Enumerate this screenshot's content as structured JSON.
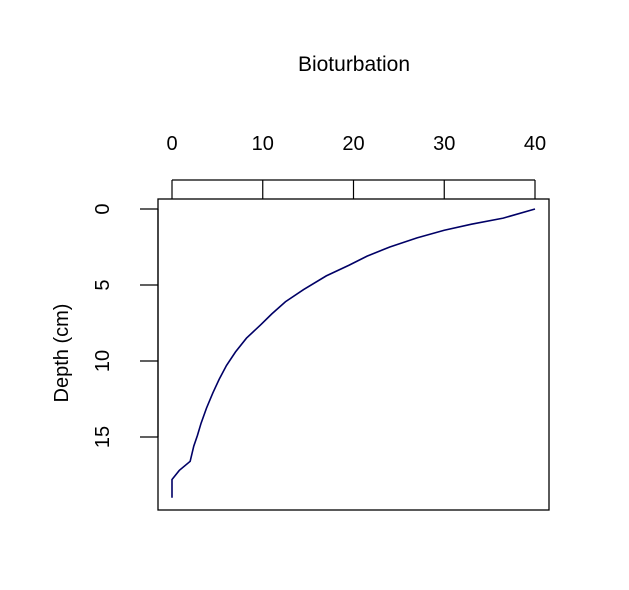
{
  "chart_data": {
    "type": "line",
    "title": "Bioturbation",
    "xlabel": "",
    "ylabel": "Depth (cm)",
    "xlim": [
      0,
      40
    ],
    "ylim": [
      0,
      19
    ],
    "y_inverted": true,
    "x_axis_position": "top",
    "grid": false,
    "legend": "none",
    "x_ticks": [
      0,
      10,
      20,
      30,
      40
    ],
    "y_ticks": [
      0,
      5,
      10,
      15
    ],
    "colors": {
      "line": "#000066",
      "axes": "#000000"
    },
    "series": [
      {
        "values_x": [
          40,
          36.5,
          33,
          30,
          27,
          24,
          21.5,
          19.5,
          17,
          14.5,
          12.5,
          11,
          9.8,
          8.2,
          7,
          6,
          5.2,
          4.5,
          3.8,
          3.2,
          2.8,
          2.4,
          2.2,
          2.0,
          0.8,
          0.0,
          0.0
        ],
        "values_y": [
          0,
          0.6,
          1.0,
          1.4,
          1.9,
          2.5,
          3.1,
          3.7,
          4.4,
          5.3,
          6.1,
          6.9,
          7.6,
          8.5,
          9.4,
          10.3,
          11.2,
          12.1,
          13.1,
          14.1,
          14.9,
          15.6,
          16.1,
          16.6,
          17.2,
          17.8,
          19.0
        ]
      }
    ]
  }
}
